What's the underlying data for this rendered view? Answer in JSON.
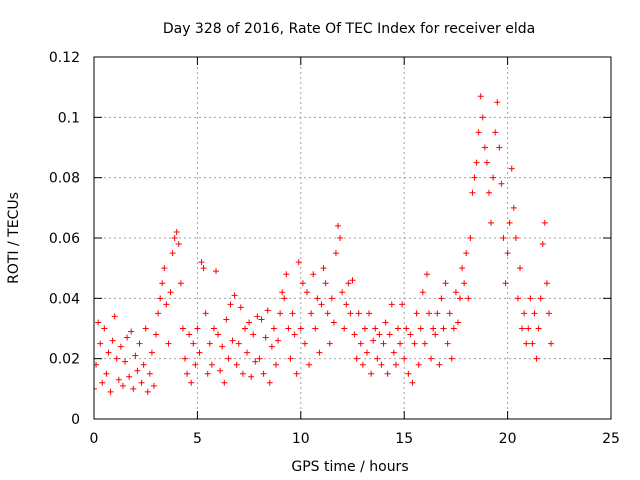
{
  "chart_data": {
    "type": "scatter",
    "title": "Day 328 of 2016, Rate Of TEC Index for receiver elda",
    "xlabel": "GPS time / hours",
    "ylabel": "ROTI / TECUs",
    "xlim": [
      0,
      25
    ],
    "ylim": [
      0,
      0.12
    ],
    "x_ticks": [
      "0",
      "5",
      "10",
      "15",
      "20",
      "25"
    ],
    "y_ticks": [
      "0",
      "0.02",
      "0.04",
      "0.06",
      "0.08",
      "0.1",
      "0.12"
    ],
    "grid": true,
    "marker": "plus",
    "color": "#ff0000",
    "series": [
      {
        "points": [
          [
            0.0,
            0.01
          ],
          [
            0.1,
            0.018
          ],
          [
            0.2,
            0.032
          ],
          [
            0.3,
            0.025
          ],
          [
            0.4,
            0.012
          ],
          [
            0.5,
            0.03
          ],
          [
            0.6,
            0.015
          ],
          [
            0.7,
            0.022
          ],
          [
            0.8,
            0.009
          ],
          [
            0.9,
            0.026
          ],
          [
            1.0,
            0.034
          ],
          [
            1.1,
            0.02
          ],
          [
            1.2,
            0.013
          ],
          [
            1.3,
            0.024
          ],
          [
            1.4,
            0.011
          ],
          [
            1.5,
            0.019
          ],
          [
            1.6,
            0.027
          ],
          [
            1.7,
            0.014
          ],
          [
            1.8,
            0.029
          ],
          [
            1.9,
            0.01
          ],
          [
            2.0,
            0.021
          ],
          [
            2.1,
            0.016
          ],
          [
            2.2,
            0.025
          ],
          [
            2.3,
            0.012
          ],
          [
            2.4,
            0.018
          ],
          [
            2.5,
            0.03
          ],
          [
            2.6,
            0.009
          ],
          [
            2.7,
            0.015
          ],
          [
            2.8,
            0.022
          ],
          [
            2.9,
            0.011
          ],
          [
            3.0,
            0.028
          ],
          [
            3.1,
            0.035
          ],
          [
            3.2,
            0.04
          ],
          [
            3.3,
            0.045
          ],
          [
            3.4,
            0.05
          ],
          [
            3.5,
            0.038
          ],
          [
            3.6,
            0.025
          ],
          [
            3.7,
            0.042
          ],
          [
            3.8,
            0.055
          ],
          [
            3.9,
            0.06
          ],
          [
            4.0,
            0.062
          ],
          [
            4.1,
            0.058
          ],
          [
            4.2,
            0.045
          ],
          [
            4.3,
            0.03
          ],
          [
            4.4,
            0.02
          ],
          [
            4.5,
            0.015
          ],
          [
            4.6,
            0.028
          ],
          [
            4.7,
            0.012
          ],
          [
            4.8,
            0.025
          ],
          [
            4.9,
            0.018
          ],
          [
            5.0,
            0.03
          ],
          [
            5.1,
            0.022
          ],
          [
            5.2,
            0.052
          ],
          [
            5.3,
            0.05
          ],
          [
            5.4,
            0.035
          ],
          [
            5.5,
            0.015
          ],
          [
            5.6,
            0.025
          ],
          [
            5.7,
            0.018
          ],
          [
            5.8,
            0.03
          ],
          [
            5.9,
            0.049
          ],
          [
            6.0,
            0.028
          ],
          [
            6.1,
            0.016
          ],
          [
            6.2,
            0.024
          ],
          [
            6.3,
            0.012
          ],
          [
            6.4,
            0.033
          ],
          [
            6.5,
            0.02
          ],
          [
            6.6,
            0.038
          ],
          [
            6.7,
            0.026
          ],
          [
            6.8,
            0.041
          ],
          [
            6.9,
            0.018
          ],
          [
            7.0,
            0.025
          ],
          [
            7.1,
            0.037
          ],
          [
            7.2,
            0.015
          ],
          [
            7.3,
            0.03
          ],
          [
            7.4,
            0.022
          ],
          [
            7.5,
            0.032
          ],
          [
            7.6,
            0.014
          ],
          [
            7.7,
            0.028
          ],
          [
            7.8,
            0.019
          ],
          [
            7.9,
            0.034
          ],
          [
            8.0,
            0.02
          ],
          [
            8.1,
            0.033
          ],
          [
            8.2,
            0.015
          ],
          [
            8.3,
            0.027
          ],
          [
            8.4,
            0.036
          ],
          [
            8.5,
            0.012
          ],
          [
            8.6,
            0.024
          ],
          [
            8.7,
            0.03
          ],
          [
            8.8,
            0.018
          ],
          [
            8.9,
            0.026
          ],
          [
            9.0,
            0.035
          ],
          [
            9.1,
            0.042
          ],
          [
            9.2,
            0.04
          ],
          [
            9.3,
            0.048
          ],
          [
            9.4,
            0.03
          ],
          [
            9.5,
            0.02
          ],
          [
            9.6,
            0.035
          ],
          [
            9.7,
            0.028
          ],
          [
            9.8,
            0.015
          ],
          [
            9.9,
            0.052
          ],
          [
            10.0,
            0.03
          ],
          [
            10.1,
            0.045
          ],
          [
            10.2,
            0.025
          ],
          [
            10.3,
            0.042
          ],
          [
            10.4,
            0.018
          ],
          [
            10.5,
            0.035
          ],
          [
            10.6,
            0.048
          ],
          [
            10.7,
            0.03
          ],
          [
            10.8,
            0.04
          ],
          [
            10.9,
            0.022
          ],
          [
            11.0,
            0.038
          ],
          [
            11.1,
            0.05
          ],
          [
            11.2,
            0.045
          ],
          [
            11.3,
            0.035
          ],
          [
            11.4,
            0.025
          ],
          [
            11.5,
            0.04
          ],
          [
            11.6,
            0.032
          ],
          [
            11.7,
            0.055
          ],
          [
            11.8,
            0.064
          ],
          [
            11.9,
            0.06
          ],
          [
            12.0,
            0.042
          ],
          [
            12.1,
            0.03
          ],
          [
            12.2,
            0.038
          ],
          [
            12.3,
            0.045
          ],
          [
            12.4,
            0.035
          ],
          [
            12.5,
            0.046
          ],
          [
            12.6,
            0.028
          ],
          [
            12.7,
            0.02
          ],
          [
            12.8,
            0.035
          ],
          [
            12.9,
            0.025
          ],
          [
            13.0,
            0.018
          ],
          [
            13.1,
            0.03
          ],
          [
            13.2,
            0.022
          ],
          [
            13.3,
            0.035
          ],
          [
            13.4,
            0.015
          ],
          [
            13.5,
            0.026
          ],
          [
            13.6,
            0.03
          ],
          [
            13.7,
            0.02
          ],
          [
            13.8,
            0.028
          ],
          [
            13.9,
            0.018
          ],
          [
            14.0,
            0.025
          ],
          [
            14.1,
            0.032
          ],
          [
            14.2,
            0.015
          ],
          [
            14.3,
            0.028
          ],
          [
            14.4,
            0.038
          ],
          [
            14.5,
            0.022
          ],
          [
            14.6,
            0.018
          ],
          [
            14.7,
            0.03
          ],
          [
            14.8,
            0.025
          ],
          [
            14.9,
            0.038
          ],
          [
            15.0,
            0.02
          ],
          [
            15.1,
            0.03
          ],
          [
            15.2,
            0.015
          ],
          [
            15.3,
            0.028
          ],
          [
            15.4,
            0.012
          ],
          [
            15.5,
            0.025
          ],
          [
            15.6,
            0.035
          ],
          [
            15.7,
            0.018
          ],
          [
            15.8,
            0.03
          ],
          [
            15.9,
            0.042
          ],
          [
            16.0,
            0.025
          ],
          [
            16.1,
            0.048
          ],
          [
            16.2,
            0.035
          ],
          [
            16.3,
            0.02
          ],
          [
            16.4,
            0.03
          ],
          [
            16.5,
            0.028
          ],
          [
            16.6,
            0.035
          ],
          [
            16.7,
            0.018
          ],
          [
            16.8,
            0.04
          ],
          [
            16.9,
            0.03
          ],
          [
            17.0,
            0.045
          ],
          [
            17.1,
            0.025
          ],
          [
            17.2,
            0.035
          ],
          [
            17.3,
            0.02
          ],
          [
            17.4,
            0.03
          ],
          [
            17.5,
            0.042
          ],
          [
            17.6,
            0.032
          ],
          [
            17.7,
            0.04
          ],
          [
            17.8,
            0.05
          ],
          [
            17.9,
            0.045
          ],
          [
            18.0,
            0.055
          ],
          [
            18.1,
            0.04
          ],
          [
            18.2,
            0.06
          ],
          [
            18.3,
            0.075
          ],
          [
            18.4,
            0.08
          ],
          [
            18.5,
            0.085
          ],
          [
            18.6,
            0.095
          ],
          [
            18.7,
            0.107
          ],
          [
            18.8,
            0.1
          ],
          [
            18.9,
            0.09
          ],
          [
            19.0,
            0.085
          ],
          [
            19.1,
            0.075
          ],
          [
            19.2,
            0.065
          ],
          [
            19.3,
            0.08
          ],
          [
            19.4,
            0.095
          ],
          [
            19.5,
            0.105
          ],
          [
            19.6,
            0.09
          ],
          [
            19.7,
            0.078
          ],
          [
            19.8,
            0.06
          ],
          [
            19.9,
            0.045
          ],
          [
            20.0,
            0.055
          ],
          [
            20.1,
            0.065
          ],
          [
            20.2,
            0.083
          ],
          [
            20.3,
            0.07
          ],
          [
            20.4,
            0.06
          ],
          [
            20.5,
            0.04
          ],
          [
            20.6,
            0.05
          ],
          [
            20.7,
            0.03
          ],
          [
            20.8,
            0.035
          ],
          [
            20.9,
            0.025
          ],
          [
            21.0,
            0.03
          ],
          [
            21.1,
            0.04
          ],
          [
            21.2,
            0.025
          ],
          [
            21.3,
            0.035
          ],
          [
            21.4,
            0.02
          ],
          [
            21.5,
            0.03
          ],
          [
            21.6,
            0.04
          ],
          [
            21.7,
            0.058
          ],
          [
            21.8,
            0.065
          ],
          [
            21.9,
            0.045
          ],
          [
            22.0,
            0.035
          ],
          [
            22.1,
            0.025
          ]
        ]
      }
    ]
  }
}
